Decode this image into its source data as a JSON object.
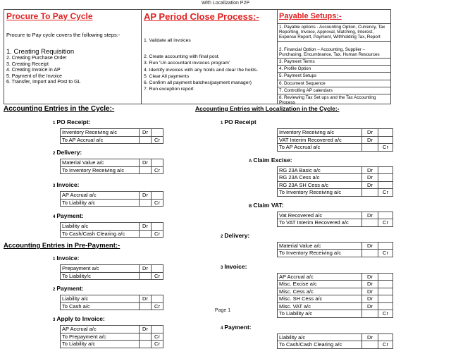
{
  "page": {
    "header": "With Localization P2P",
    "footer": "Page 1"
  },
  "colors": {
    "title_red": "#e02020",
    "text_black": "#000000",
    "table_border": "#4d4d4d"
  },
  "top_table": {
    "procure": {
      "title": "Procure To Pay Cycle",
      "intro": "Procure to Pay cycle covers the following steps:-",
      "steps": [
        "1. Creating Requisition",
        "2. Creating Purchase Order",
        "3. Creating Receipt",
        "4. Creating Invoice in AP",
        "5. Payment of the Invoice",
        "6. Transfer, Import and Post to GL"
      ]
    },
    "ap_close": {
      "title": "AP Period Close Process:-",
      "steps": [
        "1. Validate all invoices",
        "2. Create accounting with final post.",
        "3. Run ‘Un accountant invoices program’",
        "4. Identify invoices with any holds and clear the holds.",
        "5. Clear All payments",
        "6. Confirm all payment batches(payment manager)",
        "7. Run exception report"
      ]
    },
    "payable": {
      "title": "Payable Setups:-",
      "items": [
        "1. Payable options - Accounting Option, Currency, Tax Reporting, Invoice, Approval, Matching, Interest, Expense Report, Payment, Withholding Tax, Report",
        "2. Financial Option – Accounting, Supplier – Purchasing, Encumbrance, Tax, Human Resources",
        "3. Payment Terms",
        "4. Profile Option",
        "5. Payment Setups",
        "6. Document Sequence",
        "7. Controlling AP calendars",
        "8. Reviewing Tax Set ups and the Tax Accounting Process"
      ]
    }
  },
  "sections": {
    "cycle": {
      "heading": "Accounting Entries in the Cycle:-",
      "groups": [
        {
          "num": "1",
          "label": "PO Receipt:",
          "rows": [
            [
              "Inventory Receiving a/c",
              "Dr",
              ""
            ],
            [
              "To AP Accrual a/c",
              "",
              "Cr"
            ]
          ]
        },
        {
          "num": "2",
          "label": "Delivery:",
          "rows": [
            [
              "Material Value a/c",
              "Dr",
              ""
            ],
            [
              "To Inventory Receiving a/c",
              "",
              "Cr"
            ]
          ]
        },
        {
          "num": "3",
          "label": "Invoice:",
          "rows": [
            [
              "AP Accrual a/c",
              "Dr",
              ""
            ],
            [
              "To Liability a/c",
              "",
              "Cr"
            ]
          ]
        },
        {
          "num": "4",
          "label": "Payment:",
          "rows": [
            [
              "Liability a/c",
              "Dr",
              ""
            ],
            [
              "To Cash/Cash Clearing a/c",
              "",
              "Cr"
            ]
          ]
        }
      ]
    },
    "prepayment": {
      "heading": "Accounting Entries in Pre-Payment:-",
      "groups": [
        {
          "num": "1",
          "label": "Invoice:",
          "rows": [
            [
              "Prepayment a/c",
              "Dr",
              ""
            ],
            [
              "To Liability/c",
              "",
              "Cr"
            ]
          ]
        },
        {
          "num": "2",
          "label": "Payment:",
          "rows": [
            [
              "Liability a/c",
              "Dr",
              ""
            ],
            [
              "To Cash a/c",
              "",
              "Cr"
            ]
          ]
        },
        {
          "num": "3",
          "label": "Apply to Invoice:",
          "rows": [
            [
              "AP Accrual a/c",
              "Dr",
              ""
            ],
            [
              "To Prepayment a/c",
              "",
              "Cr"
            ],
            [
              "To Liability a/c",
              "",
              "Cr"
            ]
          ]
        }
      ]
    },
    "localization": {
      "heading": "Accounting Entries with Localization in the Cycle:-",
      "groups": [
        {
          "num": "1",
          "label": "PO Receipt",
          "rows": [
            [
              "Inventory Receiving a/c",
              "Dr",
              ""
            ],
            [
              "VAT Interim Recovered a/c",
              "Dr",
              ""
            ],
            [
              "To AP Accrual a/c",
              "",
              "Cr"
            ]
          ]
        },
        {
          "num": "A",
          "label": "Claim Excise:",
          "rows": [
            [
              "RG 23A Basic a/c",
              "Dr",
              ""
            ],
            [
              "RG 23A Cess a/c",
              "Dr",
              ""
            ],
            [
              "RG 23A SH Cess a/c",
              "Dr",
              ""
            ],
            [
              "To Inventory Receiving a/c",
              "",
              "Cr"
            ]
          ]
        },
        {
          "num": "B",
          "label": "Claim VAT:",
          "rows": [
            [
              "Vat Recovered a/c",
              "Dr",
              ""
            ],
            [
              "To VAT Interim Recovered a/c",
              "",
              "Cr"
            ]
          ]
        },
        {
          "num": "2",
          "label": "Delivery:",
          "rows": [
            [
              "Material Value a/c",
              "Dr",
              ""
            ],
            [
              "To Inventory Receiving a/c",
              "",
              "Cr"
            ]
          ]
        },
        {
          "num": "3",
          "label": "Invoice:",
          "rows": [
            [
              "AP Accrual a/c",
              "Dr",
              ""
            ],
            [
              "Misc. Excise a/c",
              "Dr",
              ""
            ],
            [
              "Misc. Cess a/c",
              "Dr",
              ""
            ],
            [
              "Misc. SH Cess a/c",
              "Dr",
              ""
            ],
            [
              "Misc. VAT a/c",
              "Dr",
              ""
            ],
            [
              "To Liability a/c",
              "",
              "Cr"
            ]
          ]
        },
        {
          "num": "4",
          "label": "Payment:",
          "rows": [
            [
              "Liability a/c",
              "Dr",
              ""
            ],
            [
              "To Cash/Cash Clearing a/c",
              "",
              "Cr"
            ]
          ]
        }
      ]
    }
  }
}
